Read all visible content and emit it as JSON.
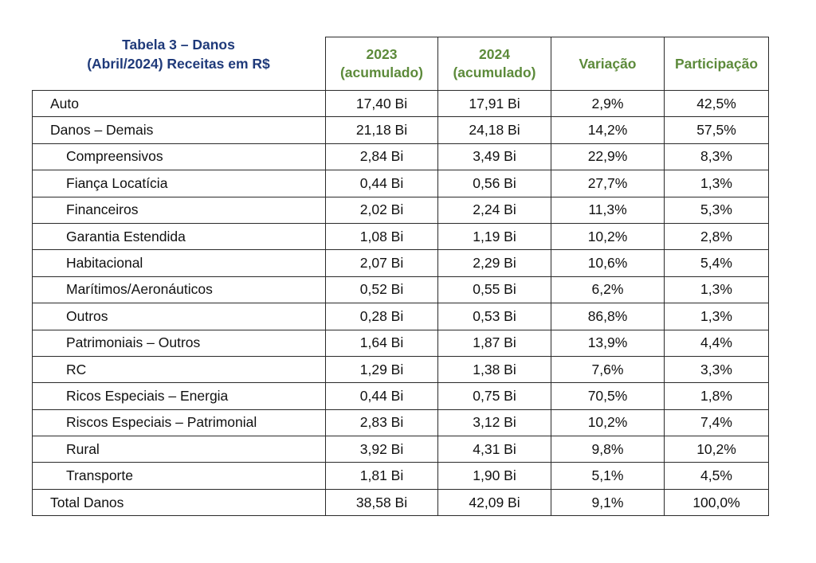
{
  "title": {
    "line1": "Tabela 3 – Danos",
    "line2": "(Abril/2024) Receitas em R$"
  },
  "headers": [
    {
      "line1": "2023",
      "line2": "(acumulado)"
    },
    {
      "line1": "2024",
      "line2": "(acumulado)"
    },
    {
      "line1": "Variação",
      "line2": ""
    },
    {
      "line1": "Participação",
      "line2": ""
    }
  ],
  "rows": [
    {
      "label": "Auto",
      "indent": false,
      "v2023": "17,40 Bi",
      "v2024": "17,91 Bi",
      "variacao": "2,9%",
      "participacao": "42,5%"
    },
    {
      "label": "Danos – Demais",
      "indent": false,
      "v2023": "21,18 Bi",
      "v2024": "24,18 Bi",
      "variacao": "14,2%",
      "participacao": "57,5%"
    },
    {
      "label": "Compreensivos",
      "indent": true,
      "v2023": "2,84 Bi",
      "v2024": "3,49 Bi",
      "variacao": "22,9%",
      "participacao": "8,3%"
    },
    {
      "label": "Fiança Locatícia",
      "indent": true,
      "v2023": "0,44 Bi",
      "v2024": "0,56 Bi",
      "variacao": "27,7%",
      "participacao": "1,3%"
    },
    {
      "label": "Financeiros",
      "indent": true,
      "v2023": "2,02 Bi",
      "v2024": "2,24 Bi",
      "variacao": "11,3%",
      "participacao": "5,3%"
    },
    {
      "label": "Garantia Estendida",
      "indent": true,
      "v2023": "1,08 Bi",
      "v2024": "1,19 Bi",
      "variacao": "10,2%",
      "participacao": "2,8%"
    },
    {
      "label": "Habitacional",
      "indent": true,
      "v2023": "2,07 Bi",
      "v2024": "2,29 Bi",
      "variacao": "10,6%",
      "participacao": "5,4%"
    },
    {
      "label": "Marítimos/Aeronáuticos",
      "indent": true,
      "v2023": "0,52 Bi",
      "v2024": "0,55 Bi",
      "variacao": "6,2%",
      "participacao": "1,3%"
    },
    {
      "label": "Outros",
      "indent": true,
      "v2023": "0,28 Bi",
      "v2024": "0,53 Bi",
      "variacao": "86,8%",
      "participacao": "1,3%"
    },
    {
      "label": "Patrimoniais – Outros",
      "indent": true,
      "v2023": "1,64 Bi",
      "v2024": "1,87 Bi",
      "variacao": "13,9%",
      "participacao": "4,4%"
    },
    {
      "label": "RC",
      "indent": true,
      "v2023": "1,29 Bi",
      "v2024": "1,38 Bi",
      "variacao": "7,6%",
      "participacao": "3,3%"
    },
    {
      "label": "Ricos Especiais – Energia",
      "indent": true,
      "v2023": "0,44 Bi",
      "v2024": "0,75 Bi",
      "variacao": "70,5%",
      "participacao": "1,8%"
    },
    {
      "label": "Riscos Especiais – Patrimonial",
      "indent": true,
      "v2023": "2,83 Bi",
      "v2024": "3,12 Bi",
      "variacao": "10,2%",
      "participacao": "7,4%"
    },
    {
      "label": "Rural",
      "indent": true,
      "v2023": "3,92 Bi",
      "v2024": "4,31 Bi",
      "variacao": "9,8%",
      "participacao": "10,2%"
    },
    {
      "label": "Transporte",
      "indent": true,
      "v2023": "1,81 Bi",
      "v2024": "1,90 Bi",
      "variacao": "5,1%",
      "participacao": "4,5%"
    },
    {
      "label": "Total Danos",
      "indent": false,
      "v2023": "38,58 Bi",
      "v2024": "42,09 Bi",
      "variacao": "9,1%",
      "participacao": "100,0%"
    }
  ],
  "colors": {
    "title": "#1f3a7a",
    "header": "#5c8a3a",
    "border": "#2a2a2a"
  }
}
